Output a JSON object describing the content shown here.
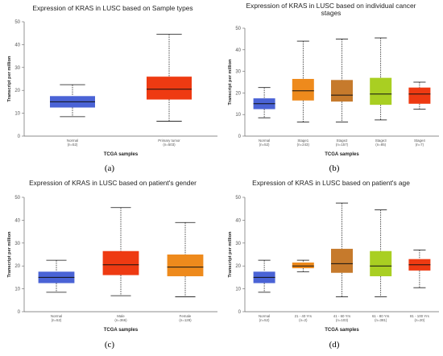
{
  "colors": {
    "normal": "#4a63d6",
    "tumor": "#ee3a12",
    "orange": "#ee8a1c",
    "brown": "#c67a2c",
    "lime": "#a9cf22"
  },
  "chart_data": [
    {
      "type": "box",
      "panel_label": "(a)",
      "title": [
        "Expression of KRAS in LUSC based on Sample types"
      ],
      "ylabel": "Transcript per million",
      "xlabel": "TCGA samples",
      "ylim": [
        0,
        50
      ],
      "yticks": [
        0,
        10,
        20,
        30,
        40,
        50
      ],
      "boxes": [
        {
          "name": "Normal",
          "n": "(n=52)",
          "min": 8.5,
          "q1": 12.5,
          "median": 15,
          "q3": 17.5,
          "max": 22.5,
          "color": "#4a63d6"
        },
        {
          "name": "Primary tumor",
          "n": "(n=503)",
          "min": 6.5,
          "q1": 16,
          "median": 20.5,
          "q3": 26,
          "max": 44.5,
          "color": "#ee3a12"
        }
      ]
    },
    {
      "type": "box",
      "panel_label": "(b)",
      "title": [
        "Expression of KRAS in LUSC based on individual cancer",
        "stages"
      ],
      "ylabel": "Transcript per million",
      "xlabel": "TCGA samples",
      "ylim": [
        0,
        50
      ],
      "yticks": [
        0,
        10,
        20,
        30,
        40,
        50
      ],
      "boxes": [
        {
          "name": "Normal",
          "n": "(n=52)",
          "min": 8.5,
          "q1": 12.5,
          "median": 15,
          "q3": 17.5,
          "max": 22.5,
          "color": "#4a63d6"
        },
        {
          "name": "Stage1",
          "n": "(n=243)",
          "min": 6.5,
          "q1": 16.5,
          "median": 21,
          "q3": 26.5,
          "max": 44,
          "color": "#ee8a1c"
        },
        {
          "name": "Stage2",
          "n": "(n=157)",
          "min": 6.5,
          "q1": 16,
          "median": 19,
          "q3": 26,
          "max": 45,
          "color": "#c67a2c"
        },
        {
          "name": "Stage3",
          "n": "(n=85)",
          "min": 7.5,
          "q1": 14.5,
          "median": 19.5,
          "q3": 27,
          "max": 45.5,
          "color": "#a9cf22"
        },
        {
          "name": "Stage4",
          "n": "(n=7)",
          "min": 12.5,
          "q1": 15,
          "median": 19.5,
          "q3": 22.5,
          "max": 25,
          "color": "#ee3a12"
        }
      ]
    },
    {
      "type": "box",
      "panel_label": "(c)",
      "title": [
        "Expression of KRAS in LUSC based on patient's gender"
      ],
      "ylabel": "Transcript per million",
      "xlabel": "TCGA samples",
      "ylim": [
        0,
        50
      ],
      "yticks": [
        0,
        10,
        20,
        30,
        40,
        50
      ],
      "boxes": [
        {
          "name": "Normal",
          "n": "(n=52)",
          "min": 8.5,
          "q1": 12.5,
          "median": 15,
          "q3": 17.5,
          "max": 22.5,
          "color": "#4a63d6"
        },
        {
          "name": "Male",
          "n": "(n=366)",
          "min": 7,
          "q1": 16,
          "median": 20.5,
          "q3": 26.5,
          "max": 45.5,
          "color": "#ee3a12"
        },
        {
          "name": "Female",
          "n": "(n=128)",
          "min": 6.5,
          "q1": 15.5,
          "median": 19.5,
          "q3": 25,
          "max": 39,
          "color": "#ee8a1c"
        }
      ]
    },
    {
      "type": "box",
      "panel_label": "(d)",
      "title": [
        "Expression of KRAS in LUSC based on patient's age"
      ],
      "ylabel": "Transcript per million",
      "xlabel": "TCGA samples",
      "ylim": [
        0,
        50
      ],
      "yticks": [
        0,
        10,
        20,
        30,
        40,
        50
      ],
      "boxes": [
        {
          "name": "Normal",
          "n": "(n=52)",
          "min": 8.5,
          "q1": 12.5,
          "median": 15,
          "q3": 17.5,
          "max": 22.5,
          "color": "#4a63d6"
        },
        {
          "name": "21 - 40 Yrs",
          "n": "(n=2)",
          "min": 17.5,
          "q1": 19,
          "median": 20,
          "q3": 21.5,
          "max": 22.5,
          "color": "#ee8a1c"
        },
        {
          "name": "41 - 60 Yrs",
          "n": "(n=103)",
          "min": 6.5,
          "q1": 17,
          "median": 21,
          "q3": 27.5,
          "max": 47.5,
          "color": "#c67a2c"
        },
        {
          "name": "61 - 80 Yrs",
          "n": "(n=381)",
          "min": 6.5,
          "q1": 15.5,
          "median": 20,
          "q3": 26.5,
          "max": 44.5,
          "color": "#a9cf22"
        },
        {
          "name": "81 - 100 Yrs",
          "n": "(n=20)",
          "min": 10.5,
          "q1": 18,
          "median": 20.5,
          "q3": 23,
          "max": 27,
          "color": "#ee3a12"
        }
      ]
    }
  ]
}
